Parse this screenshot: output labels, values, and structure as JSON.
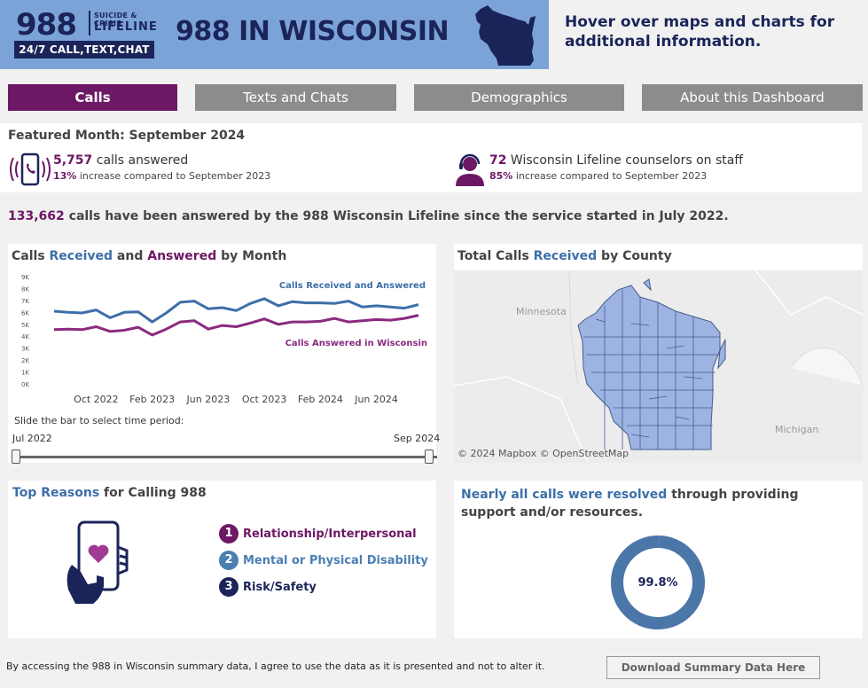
{
  "header": {
    "logo_number": "988",
    "logo_small": "SUICIDE & CRISIS",
    "logo_lifeline": "LIFELINE",
    "logo_tagline": "24/7 CALL,TEXT,CHAT",
    "title": "988 IN WISCONSIN",
    "hover_note": "Hover over maps and charts for additional information."
  },
  "tabs": [
    {
      "label": "Calls"
    },
    {
      "label": "Texts and Chats"
    },
    {
      "label": "Demographics"
    },
    {
      "label": "About this Dashboard"
    }
  ],
  "featured": {
    "title": "Featured Month: September 2024",
    "calls_value": "5,757",
    "calls_text": " calls answered",
    "calls_pct": "13%",
    "calls_sub": " increase compared to September 2023",
    "counselors_value": "72",
    "counselors_text": " Wisconsin Lifeline counselors on staff",
    "counselors_pct": "85%",
    "counselors_sub": " increase compared to September 2023"
  },
  "total": {
    "value": "133,662",
    "text": " calls have been answered by the 988 Wisconsin Lifeline since the service started in July 2022."
  },
  "line_panel": {
    "title_1": "Calls ",
    "title_received": "Received",
    "title_2": " and ",
    "title_answered": "Answered",
    "title_3": " by Month",
    "slider_label": "Slide the bar to select time period:",
    "slider_start": "Jul 2022",
    "slider_end": "Sep 2024"
  },
  "chart_data": {
    "type": "line",
    "title": "Calls Received and Answered by Month",
    "x": [
      "Jul 2022",
      "Aug 2022",
      "Sep 2022",
      "Oct 2022",
      "Nov 2022",
      "Dec 2022",
      "Jan 2023",
      "Feb 2023",
      "Mar 2023",
      "Apr 2023",
      "May 2023",
      "Jun 2023",
      "Jul 2023",
      "Aug 2023",
      "Sep 2023",
      "Oct 2023",
      "Nov 2023",
      "Dec 2023",
      "Jan 2024",
      "Feb 2024",
      "Mar 2024",
      "Apr 2024",
      "May 2024",
      "Jun 2024",
      "Jul 2024",
      "Aug 2024",
      "Sep 2024"
    ],
    "x_tick_labels": [
      "Oct 2022",
      "Feb 2023",
      "Jun 2023",
      "Oct 2023",
      "Feb 2024",
      "Jun 2024"
    ],
    "x_tick_indices": [
      3,
      7,
      11,
      15,
      19,
      23
    ],
    "y_tick_labels": [
      "0K",
      "1K",
      "2K",
      "3K",
      "4K",
      "5K",
      "6K",
      "7K",
      "8K",
      "9K"
    ],
    "ylim": [
      0,
      9000
    ],
    "series": [
      {
        "name": "Calls Received and Answered",
        "color": "#3d6fa8",
        "values": [
          6100,
          6000,
          5950,
          6200,
          5550,
          6000,
          6050,
          5200,
          5950,
          6850,
          6950,
          6300,
          6400,
          6150,
          6750,
          7150,
          6550,
          6900,
          6800,
          6800,
          6750,
          6950,
          6450,
          6550,
          6450,
          6350,
          6650
        ]
      },
      {
        "name": "Calls Answered in Wisconsin",
        "color": "#8b2a7e",
        "values": [
          4550,
          4600,
          4550,
          4800,
          4400,
          4500,
          4750,
          4100,
          4600,
          5200,
          5300,
          4600,
          4900,
          4800,
          5100,
          5450,
          5000,
          5200,
          5200,
          5250,
          5500,
          5200,
          5300,
          5400,
          5350,
          5500,
          5757
        ]
      }
    ]
  },
  "map_panel": {
    "title_1": "Total Calls ",
    "title_received": "Received",
    "title_2": " by County",
    "label_minnesota": "Minnesota",
    "label_michigan": "Michigan",
    "credit": "© 2024 Mapbox  © OpenStreetMap"
  },
  "reasons_panel": {
    "title_1": "Top Reasons",
    "title_2": " for Calling 988",
    "items": [
      {
        "num": "1",
        "label": "Relationship/Interpersonal",
        "color": "#6d1865"
      },
      {
        "num": "2",
        "label": "Mental or Physical Disability",
        "color": "#4b7fb3"
      },
      {
        "num": "3",
        "label": "Risk/Safety",
        "color": "#1b2459"
      }
    ]
  },
  "resolved_panel": {
    "title_1": "Nearly all calls were resolved",
    "title_2": " through providing support and/or resources.",
    "percent": 99.8,
    "percent_label": "99.8%"
  },
  "footer": {
    "disclaimer": "By accessing the 988 in Wisconsin summary data, I agree to use the data as it is presented and not to alter it.",
    "download_label": "Download Summary Data Here"
  }
}
